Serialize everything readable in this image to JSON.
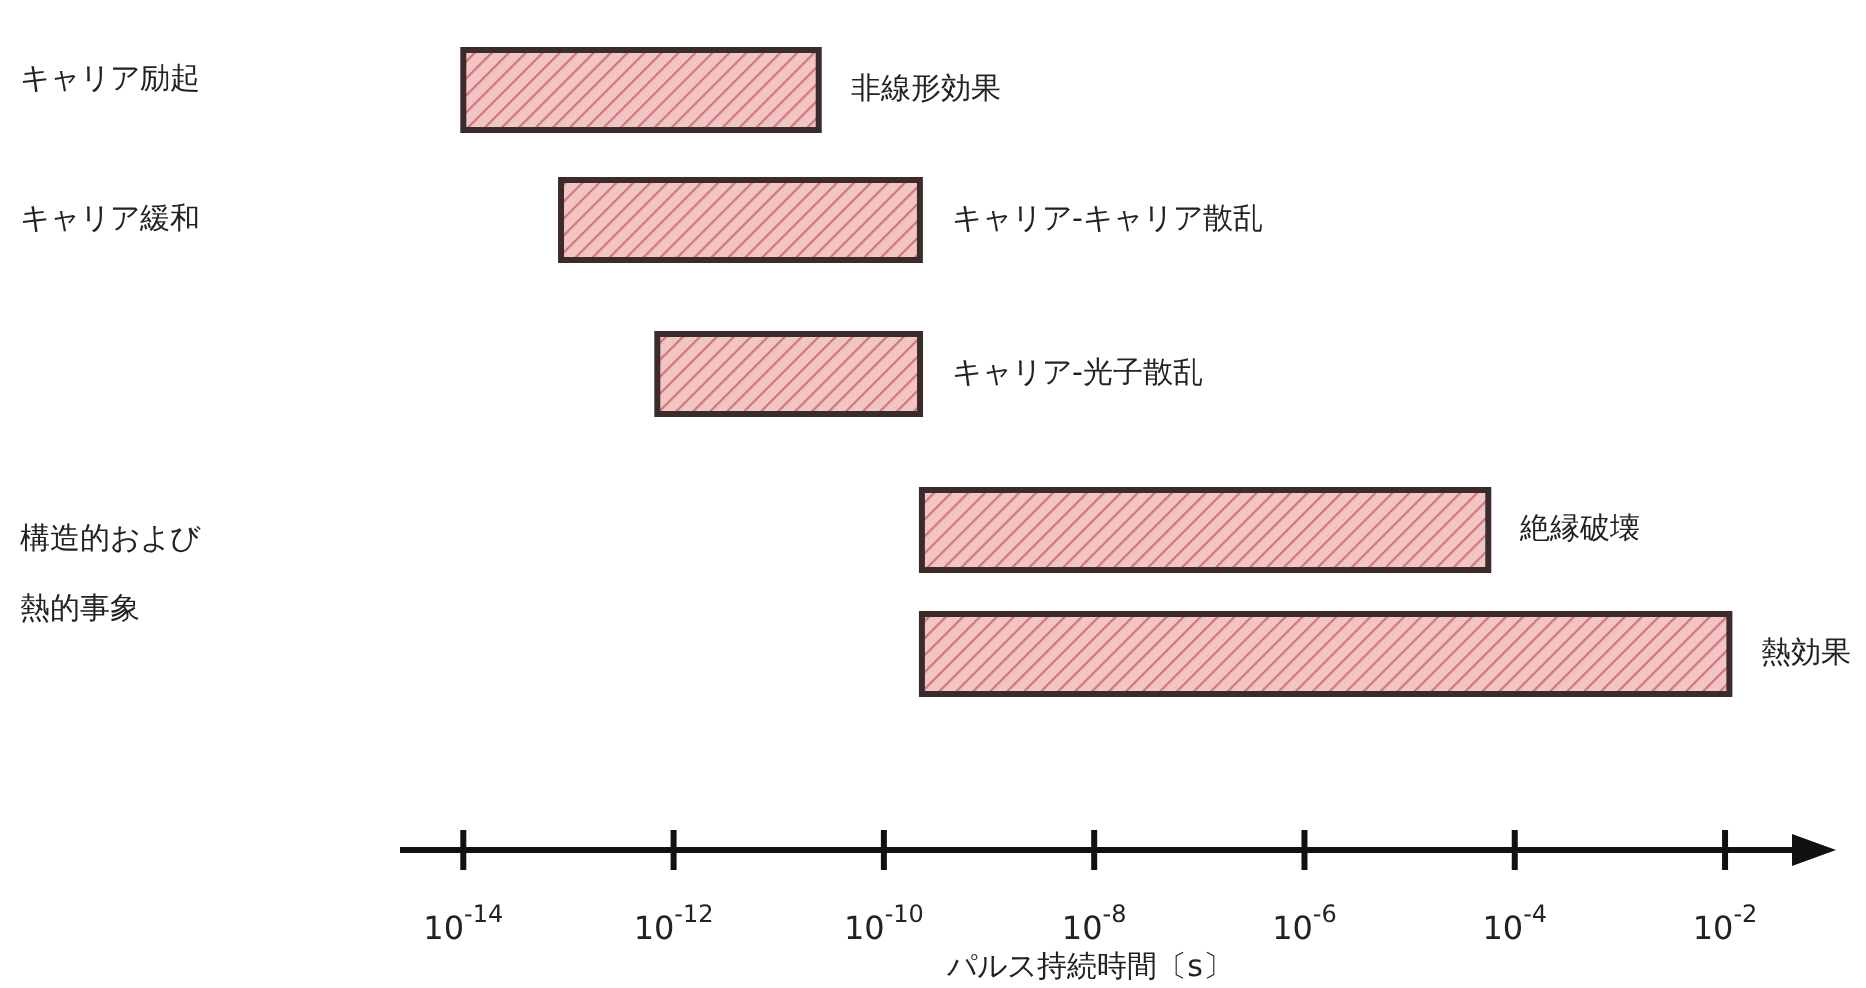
{
  "chart_data": {
    "type": "bar",
    "orientation": "horizontal",
    "log": "x",
    "categories": [
      "非線形効果",
      "キャリア-キャリア散乱",
      "キャリア-光子散乱",
      "絶縁破壊",
      "熱効果"
    ],
    "base": [
      1e-14,
      8.5e-14,
      7e-13,
      2.3e-10,
      2.3e-10
    ],
    "values": [
      2.4e-11,
      2.2e-10,
      2.2e-10,
      5.6e-05,
      0.011
    ],
    "color": "#f2c4c4",
    "xlim": [
      2.5e-15,
      0.08
    ],
    "xticks": [
      {
        "value": 1e-14,
        "label": "10$^{-14}$"
      },
      {
        "value": 1e-12,
        "label": "10$^{-12}$"
      },
      {
        "value": 1e-10,
        "label": "10$^{-10}$"
      },
      {
        "value": 1e-08,
        "label": "10$^{-8}$"
      },
      {
        "value": 1e-06,
        "label": "10$^{-6}$"
      },
      {
        "value": 0.0001,
        "label": "10$^{-4}$"
      },
      {
        "value": 0.01,
        "label": "10$^{-2}$"
      }
    ],
    "xlabel": "パルス持続時間〔s〕",
    "annotations": [
      "キャリア励起",
      "キャリア緩和",
      "構造的および",
      "熱的事象"
    ]
  }
}
